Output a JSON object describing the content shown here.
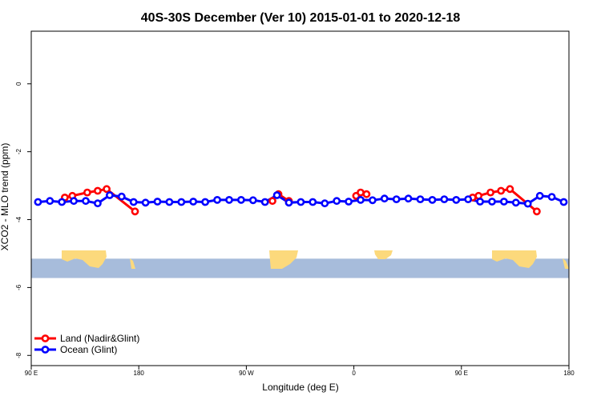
{
  "chart_data": {
    "type": "line",
    "title": "40S-30S December (Ver 10)   2015-01-01 to 2020-12-18",
    "xlabel": "Longitude (deg E)",
    "ylabel": "XCO2 - MLO trend (ppm)",
    "xlim": [
      90,
      450
    ],
    "ylim": [
      -8.3,
      1.55
    ],
    "x_ticks": [
      90,
      162,
      234,
      306,
      378,
      450
    ],
    "x_tick_labels": [
      "90 E",
      "180",
      "90 W",
      "0",
      "90 E",
      "180"
    ],
    "y_ticks": [
      0,
      -2,
      -4,
      -6,
      -8
    ],
    "y_tick_labels": [
      "0",
      "-2",
      "-4",
      "-6",
      "-8"
    ],
    "map_strip": {
      "y_range": [
        -5.15,
        -5.72
      ],
      "ocean_color": "#a7bcdb",
      "land_color": "#fcd97c"
    },
    "legend": {
      "position": "bottom-left",
      "entries": [
        "Land (Nadir&Glint)",
        "Ocean (Glint)"
      ]
    },
    "series": [
      {
        "name": "Land (Nadir&Glint)",
        "color": "#ff0000",
        "segments": [
          {
            "x": [
              112.5,
              117.5,
              127.5,
              134.5,
              140.5,
              159.5
            ],
            "y": [
              -3.35,
              -3.3,
              -3.2,
              -3.15,
              -3.1,
              -3.76
            ]
          },
          {
            "x": [
              251.5,
              255.5,
              262.5
            ],
            "y": [
              -3.45,
              -3.25,
              -3.45
            ]
          },
          {
            "x": [
              307.5,
              310.5,
              314.5
            ],
            "y": [
              -3.3,
              -3.2,
              -3.25
            ]
          },
          {
            "x": [
              385.5,
              389.5,
              397.5,
              404.5,
              410.5,
              428.5
            ],
            "y": [
              -3.35,
              -3.3,
              -3.2,
              -3.15,
              -3.1,
              -3.76
            ]
          }
        ]
      },
      {
        "name": "Ocean (Glint)",
        "color": "#0000ff",
        "x": [
          94.5,
          102.5,
          110.5,
          118.5,
          126.5,
          134.5,
          142.5,
          150.5,
          158.5,
          166.5,
          174.5,
          182.5,
          190.5,
          198.5,
          206.5,
          214.5,
          222.5,
          230.5,
          238.5,
          246.5,
          254.5,
          262.5,
          270.5,
          278.5,
          286.5,
          294.5,
          302.5,
          310.5,
          318.5,
          326.5,
          334.5,
          342.5,
          350.5,
          358.5,
          366.5,
          374.5,
          382.5,
          390.5,
          398.5,
          406.5,
          414.5,
          422.5,
          430.5,
          438.5,
          446.5
        ],
        "y": [
          -3.48,
          -3.45,
          -3.48,
          -3.45,
          -3.45,
          -3.52,
          -3.28,
          -3.32,
          -3.48,
          -3.5,
          -3.47,
          -3.48,
          -3.48,
          -3.47,
          -3.48,
          -3.42,
          -3.42,
          -3.42,
          -3.43,
          -3.48,
          -3.28,
          -3.5,
          -3.48,
          -3.48,
          -3.52,
          -3.45,
          -3.47,
          -3.42,
          -3.43,
          -3.38,
          -3.4,
          -3.38,
          -3.4,
          -3.42,
          -3.4,
          -3.42,
          -3.4,
          -3.47,
          -3.47,
          -3.47,
          -3.5,
          -3.53,
          -3.3,
          -3.33,
          -3.48
        ]
      }
    ]
  }
}
